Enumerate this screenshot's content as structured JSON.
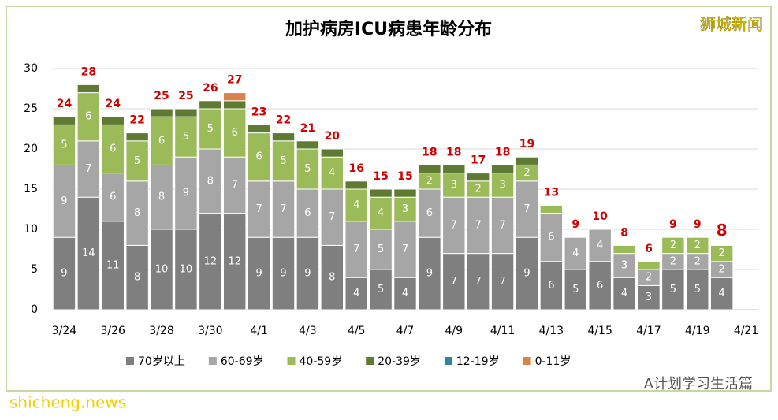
{
  "chart_data": {
    "type": "stacked-bar",
    "title": "加护病房ICU病患年龄分布",
    "watermark": "狮城新闻",
    "footer_left": "shicheng.news",
    "footer_right": "A计划学习生活篇",
    "categories": [
      "3/24",
      null,
      "3/26",
      null,
      "3/28",
      null,
      "3/30",
      null,
      "4/1",
      null,
      "4/3",
      null,
      "4/5",
      null,
      "4/7",
      null,
      "4/9",
      null,
      "4/11",
      null,
      "4/13",
      null,
      "4/15",
      null,
      "4/17",
      null,
      "4/19",
      null,
      "4/21"
    ],
    "ylim": [
      0,
      30
    ],
    "yticks": [
      0,
      5,
      10,
      15,
      20,
      25,
      30
    ],
    "grid": true,
    "series": [
      {
        "name": "70岁以上",
        "color": "#7f7f7f",
        "values": [
          9,
          14,
          11,
          8,
          10,
          10,
          12,
          12,
          9,
          9,
          9,
          8,
          4,
          5,
          4,
          9,
          7,
          7,
          7,
          9,
          6,
          5,
          6,
          4,
          3,
          5,
          5,
          4,
          null
        ]
      },
      {
        "name": "60-69岁",
        "color": "#a6a6a6",
        "values": [
          9,
          7,
          6,
          8,
          8,
          9,
          8,
          7,
          7,
          7,
          6,
          7,
          7,
          5,
          7,
          6,
          7,
          7,
          7,
          7,
          6,
          4,
          4,
          3,
          2,
          2,
          2,
          2,
          null
        ]
      },
      {
        "name": "40-59岁",
        "color": "#9bbb59",
        "values": [
          5,
          6,
          6,
          5,
          6,
          5,
          5,
          6,
          6,
          5,
          5,
          4,
          4,
          4,
          3,
          2,
          3,
          2,
          3,
          2,
          1,
          0,
          0,
          1,
          1,
          2,
          2,
          2,
          null
        ]
      },
      {
        "name": "20-39岁",
        "color": "#5f7a32",
        "values": [
          1,
          1,
          1,
          1,
          1,
          1,
          1,
          1,
          1,
          1,
          1,
          1,
          1,
          1,
          1,
          1,
          1,
          1,
          1,
          1,
          0,
          0,
          0,
          0,
          0,
          0,
          0,
          0,
          null
        ]
      },
      {
        "name": "12-19岁",
        "color": "#31859c",
        "values": [
          0,
          0,
          0,
          0,
          0,
          0,
          0,
          0,
          0,
          0,
          0,
          0,
          0,
          0,
          0,
          0,
          0,
          0,
          0,
          0,
          0,
          0,
          0,
          0,
          0,
          0,
          0,
          0,
          null
        ]
      },
      {
        "name": "0-11岁",
        "color": "#d9824a",
        "values": [
          0,
          0,
          0,
          0,
          0,
          0,
          0,
          1,
          0,
          0,
          0,
          0,
          0,
          0,
          0,
          0,
          0,
          0,
          0,
          0,
          0,
          0,
          0,
          0,
          0,
          0,
          0,
          0,
          null
        ]
      }
    ],
    "totals": [
      24,
      28,
      24,
      22,
      25,
      25,
      26,
      27,
      23,
      22,
      21,
      20,
      16,
      15,
      15,
      18,
      18,
      17,
      18,
      19,
      13,
      9,
      10,
      8,
      6,
      9,
      9,
      8,
      null
    ],
    "totals_color": "#d00000"
  }
}
